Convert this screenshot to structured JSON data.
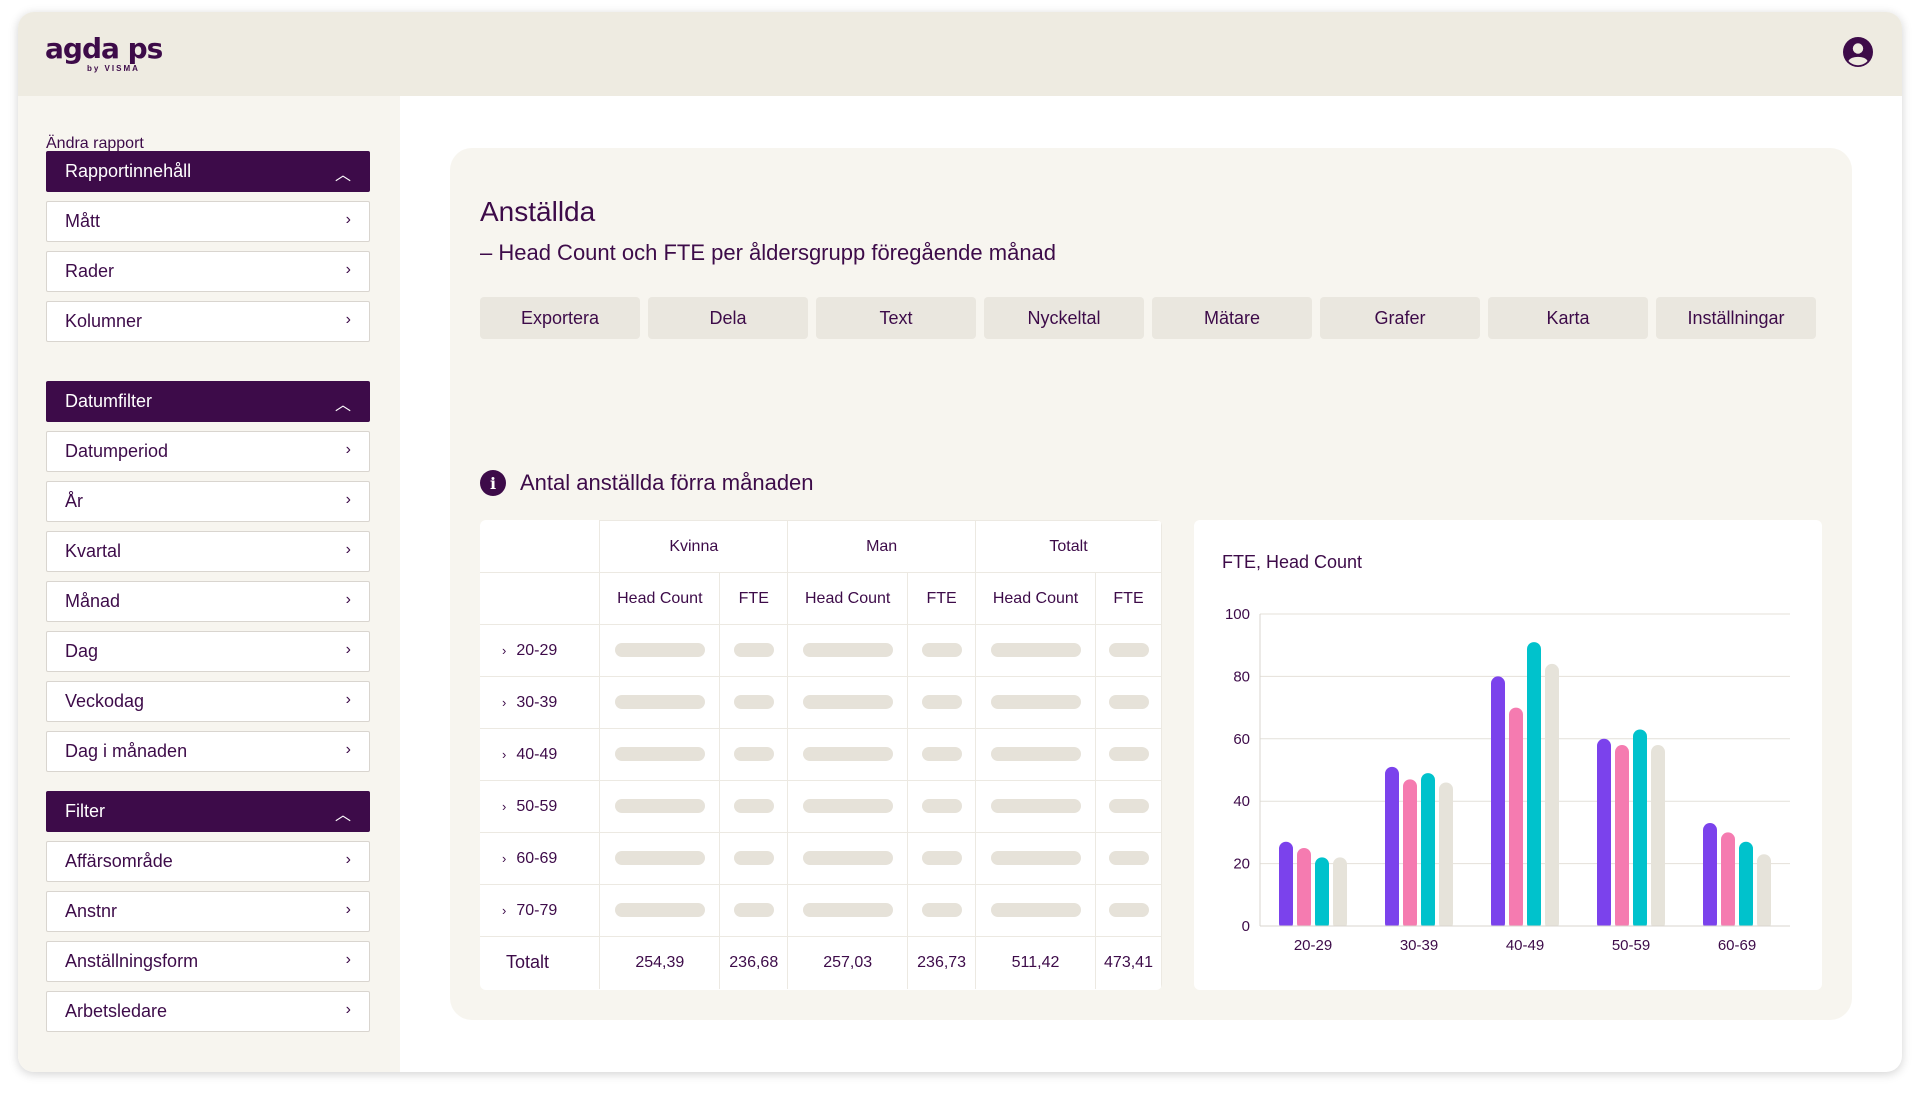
{
  "app": {
    "logo_text": "agda ps",
    "logo_sub": "by VISMA"
  },
  "sidebar": {
    "title": "Ändra rapport",
    "sections": [
      {
        "label": "Rapportinnehåll",
        "items": [
          "Mått",
          "Rader",
          "Kolumner"
        ]
      },
      {
        "label": "Datumfilter",
        "items": [
          "Datumperiod",
          "År",
          "Kvartal",
          "Månad",
          "Dag",
          "Veckodag",
          "Dag i månaden"
        ]
      },
      {
        "label": "Filter",
        "items": [
          "Affärsområde",
          "Anstnr",
          "Anställningsform",
          "Arbetsledare"
        ]
      }
    ]
  },
  "report": {
    "title": "Anställda",
    "subtitle": "– Head Count och FTE per åldersgrupp föregående månad",
    "toolbar": [
      "Exportera",
      "Dela",
      "Text",
      "Nyckeltal",
      "Mätare",
      "Grafer",
      "Karta",
      "Inställningar"
    ],
    "section_title": "Antal anställda förra månaden"
  },
  "table": {
    "groups": [
      "Kvinna",
      "Man",
      "Totalt"
    ],
    "subcols": [
      "Head Count",
      "FTE",
      "Head Count",
      "FTE",
      "Head Count",
      "FTE"
    ],
    "rows": [
      "20-29",
      "30-39",
      "40-49",
      "50-59",
      "60-69",
      "70-79"
    ],
    "total_label": "Totalt",
    "totals": [
      "254,39",
      "236,68",
      "257,03",
      "236,73",
      "511,42",
      "473,41"
    ]
  },
  "chart_data": {
    "type": "bar",
    "title": "FTE, Head Count",
    "categories": [
      "20-29",
      "30-39",
      "40-49",
      "50-59",
      "60-69"
    ],
    "series": [
      {
        "color": "#7b42ec",
        "values": [
          27,
          51,
          80,
          60,
          33
        ]
      },
      {
        "color": "#f57bb0",
        "values": [
          25,
          47,
          70,
          58,
          30
        ]
      },
      {
        "color": "#00c2cc",
        "values": [
          22,
          49,
          91,
          63,
          27
        ]
      },
      {
        "color": "#e6e3da",
        "values": [
          22,
          46,
          84,
          58,
          23
        ]
      }
    ],
    "ylim": [
      0,
      100
    ],
    "yticks": [
      0,
      20,
      40,
      60,
      80,
      100
    ],
    "grid": true
  }
}
